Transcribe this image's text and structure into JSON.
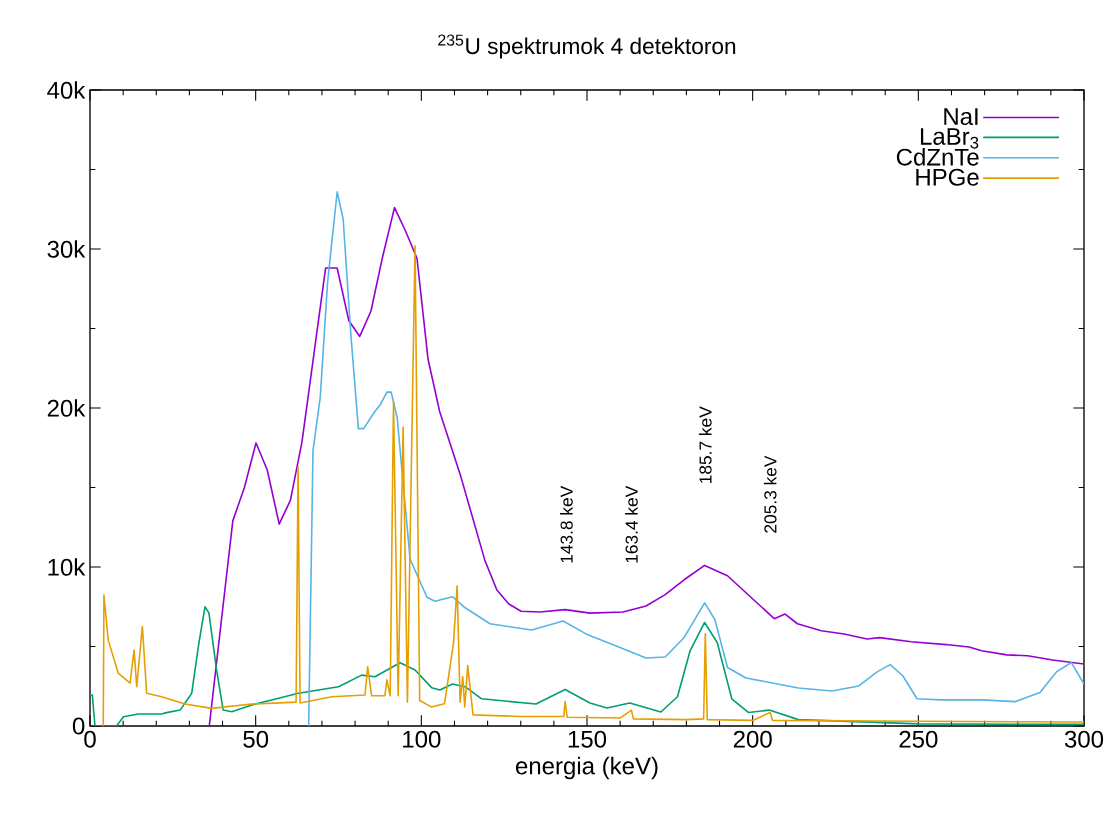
{
  "chart_data": {
    "type": "line",
    "title": "$^{235}$U spektrumok 4 detektoron",
    "xlabel": "energia (keV)",
    "xlim": [
      0,
      300
    ],
    "xticks": [
      0,
      50,
      100,
      150,
      200,
      250,
      300
    ],
    "ylim": [
      0,
      40000
    ],
    "yticks": [
      0,
      {
        "value": 10000,
        "label": "10k"
      },
      {
        "value": 20000,
        "label": "20k"
      },
      {
        "value": 30000,
        "label": "30k"
      },
      {
        "value": 40000,
        "label": "40k"
      }
    ],
    "legend": "top right",
    "grid": false,
    "annotations": [
      "143.8 keV",
      "163.4 keV",
      "185.7 keV",
      "205.3 keV"
    ],
    "series": [
      {
        "name": "NaI",
        "color": "#9400d3",
        "x": [
          0,
          36,
          43.1,
          46.6,
          50.1,
          53.5,
          57.1,
          60.5,
          64.0,
          71.1,
          74.6,
          78.1,
          81.4,
          84.8,
          88.3,
          91.9,
          95.3,
          98.7,
          102.0,
          105.5,
          111.9,
          119.2,
          122.8,
          126.4,
          130.1,
          135.8,
          143.4,
          150.9,
          160.9,
          167.8,
          173.6,
          179.2,
          185.5,
          192.4,
          199.3,
          206.5,
          209.8,
          213.5,
          220.7,
          227.6,
          234.5,
          238.3,
          247.8,
          258.4,
          265.3,
          269.1,
          276.7,
          283.0,
          290.5,
          300
        ],
        "values": [
          0,
          0,
          12900,
          15000,
          17800,
          16100,
          12700,
          14200,
          17900,
          28800,
          28800,
          25500,
          24500,
          26100,
          29500,
          32600,
          31100,
          29400,
          23100,
          19800,
          15700,
          10400,
          8550,
          7670,
          7220,
          7170,
          7320,
          7100,
          7170,
          7550,
          8260,
          9180,
          10100,
          9450,
          8130,
          6750,
          7040,
          6430,
          5990,
          5790,
          5470,
          5560,
          5300,
          5120,
          4970,
          4730,
          4470,
          4420,
          4150,
          3900
        ]
      },
      {
        "name": "LaBr$_{3}$",
        "color": "#009e73",
        "x": [
          0,
          0.7,
          1.5,
          8.0,
          10.1,
          14.6,
          21.6,
          23.1,
          27.2,
          30.7,
          32.7,
          34.7,
          35.9,
          38.2,
          40.2,
          42.8,
          48.8,
          54.8,
          62.9,
          75.0,
          82.0,
          86.0,
          93.6,
          98.1,
          103.1,
          105.6,
          109.4,
          113.2,
          118.2,
          134.6,
          143.4,
          150.9,
          156.0,
          162.9,
          172.3,
          177.3,
          181.1,
          185.5,
          189.3,
          193.7,
          198.7,
          205.0,
          213.8,
          237.7,
          250.2,
          300
        ],
        "values": [
          1950,
          1950,
          0,
          0,
          580,
          750,
          750,
          840,
          1000,
          2060,
          4990,
          7500,
          7100,
          3520,
          1000,
          900,
          1320,
          1640,
          2060,
          2470,
          3200,
          3100,
          3980,
          3520,
          2410,
          2260,
          2640,
          2470,
          1710,
          1380,
          2290,
          1450,
          1130,
          1450,
          880,
          1840,
          4720,
          6510,
          5250,
          1710,
          850,
          1000,
          400,
          null,
          130,
          100
        ]
      },
      {
        "name": "CdZnTe",
        "color": "#56b4e9",
        "x": [
          66.0,
          67.3,
          69.5,
          71.7,
          74.6,
          76.4,
          78.7,
          81.0,
          82.6,
          85.7,
          87.6,
          89.6,
          90.9,
          92.7,
          96.6,
          101.7,
          104.1,
          109.4,
          113.1,
          120.7,
          133.3,
          142.8,
          149.7,
          160.9,
          167.8,
          173.6,
          179.2,
          185.5,
          188.6,
          192.4,
          198.0,
          207.5,
          213.8,
          223.9,
          232.0,
          237.7,
          241.5,
          245.3,
          249.6,
          256.6,
          269.1,
          279.2,
          286.7,
          291.8,
          296.2,
          300
        ],
        "values": [
          0,
          17300,
          20700,
          27900,
          33600,
          31900,
          24700,
          18700,
          18700,
          19700,
          20200,
          21000,
          21000,
          19400,
          10500,
          8100,
          7850,
          8130,
          7450,
          6430,
          6040,
          6600,
          5790,
          4860,
          4280,
          4340,
          5530,
          7740,
          6690,
          3680,
          3020,
          2640,
          2390,
          2200,
          2520,
          3420,
          3860,
          3160,
          1710,
          1640,
          1640,
          1530,
          2110,
          3420,
          3990,
          2640
        ]
      },
      {
        "name": "HPGe",
        "color": "#e69f00",
        "x": [
          4.0,
          4.2,
          5.5,
          8.5,
          12.1,
          13.3,
          14.1,
          15.8,
          17.1,
          21.6,
          28.7,
          36.7,
          48.8,
          58.9,
          62.2,
          62.8,
          63.4,
          73.0,
          83.0,
          83.8,
          85.0,
          89.0,
          89.6,
          90.6,
          91.6,
          93.0,
          94.5,
          95.8,
          98.1,
          99.5,
          103.0,
          107.0,
          109.7,
          110.8,
          111.7,
          112.5,
          113.1,
          114.0,
          115.6,
          130.0,
          143.0,
          143.4,
          144.0,
          160.0,
          163.4,
          164.0,
          180.0,
          185.2,
          185.7,
          186.3,
          200.0,
          205.3,
          206.0,
          250.0,
          300.0
        ],
        "values": [
          0,
          8240,
          5400,
          3330,
          2700,
          4780,
          2470,
          6250,
          2060,
          1840,
          1380,
          1110,
          1380,
          1470,
          1500,
          16300,
          1450,
          1840,
          1950,
          3730,
          1900,
          1900,
          2900,
          1900,
          20400,
          1900,
          18800,
          1500,
          30200,
          1600,
          1200,
          1400,
          5200,
          8800,
          1500,
          3100,
          1200,
          3800,
          700,
          600,
          600,
          1530,
          550,
          500,
          1000,
          450,
          400,
          450,
          5790,
          400,
          350,
          850,
          350,
          300,
          250
        ]
      }
    ]
  }
}
